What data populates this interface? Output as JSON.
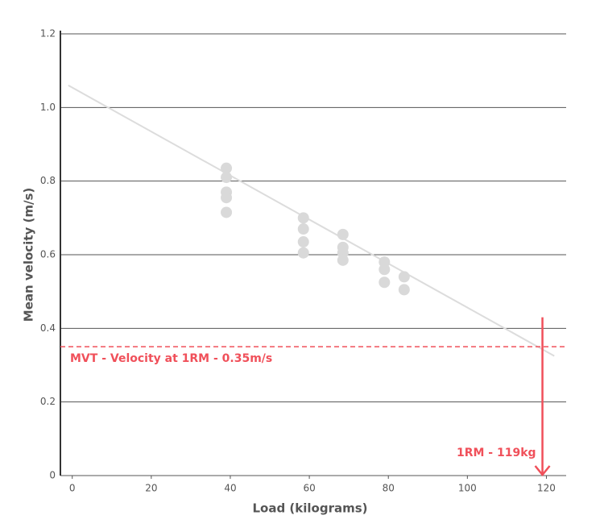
{
  "chart_data": {
    "type": "scatter",
    "xlabel": "Load (kilograms)",
    "ylabel": "Mean velocity (m/s)",
    "x": [
      39,
      39,
      39,
      39,
      39,
      58.5,
      58.5,
      58.5,
      58.5,
      68.5,
      68.5,
      68.5,
      68.5,
      79,
      79,
      79,
      84,
      84
    ],
    "values": [
      0.835,
      0.81,
      0.77,
      0.755,
      0.715,
      0.7,
      0.67,
      0.635,
      0.605,
      0.655,
      0.62,
      0.605,
      0.585,
      0.58,
      0.56,
      0.525,
      0.54,
      0.505
    ],
    "color": "#d9d9d9",
    "trendline": {
      "x": [
        -1,
        122
      ],
      "values": [
        1.06,
        0.325
      ],
      "color": "#dcdcdc"
    },
    "reference_line": {
      "value": 0.35,
      "label": "MVT - Velocity at 1RM - 0.35m/s",
      "color": "#f0505a"
    },
    "arrow": {
      "x": 119,
      "values": [
        0.43,
        0
      ],
      "label": "1RM - 119kg",
      "color": "#f0505a"
    },
    "xlim": [
      -3,
      125
    ],
    "ylim": [
      0,
      1.2
    ],
    "xticks": [
      0,
      20,
      40,
      60,
      80,
      100,
      120
    ],
    "yticks": [
      0,
      0.2,
      0.4,
      0.6,
      0.8,
      {
        "value": 1,
        "label": "1.0"
      },
      1.2
    ],
    "grid": true
  }
}
